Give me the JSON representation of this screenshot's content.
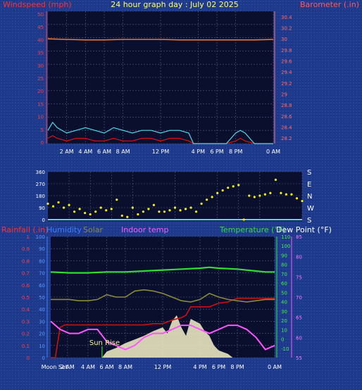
{
  "title": "24 hour graph day : July 02 2025",
  "colors": {
    "plot_bg": "#0a0f2e",
    "grid": "#4d5b80",
    "wind_avg": "#e01010",
    "wind_gust": "#4fd8e8",
    "barometer": "#e8783a",
    "direction": "#f4f414",
    "direction_base": "#56d6ff",
    "rainfall": "#cc1111",
    "humidity": "#1e90ff",
    "solar": "#8a8a3a",
    "indoor": "#ff55ff",
    "temperature": "#33dd33",
    "dewpoint": "#ffffff",
    "solar_fill": "#f6f2c8",
    "sunrise_label": "#f6f2a0"
  },
  "chart_data": [
    {
      "type": "line",
      "name": "wind-barometer",
      "left_axis": {
        "label": "Windspeed (mph)",
        "range": [
          0,
          50
        ],
        "ticks": [
          "0",
          "5",
          "10",
          "15",
          "20",
          "25",
          "30",
          "35",
          "40",
          "45",
          "50"
        ]
      },
      "right_axis": {
        "label": "Barometer (.in)",
        "range": [
          28.1,
          30.5
        ],
        "ticks": [
          "28.2",
          "28.4",
          "28.6",
          "28.8",
          "29",
          "29.2",
          "29.4",
          "29.6",
          "29.8",
          "30",
          "30.2",
          "30.4"
        ]
      },
      "x_ticks": [
        "2 AM",
        "4 AM",
        "6 AM",
        "8 AM",
        "12 PM",
        "4 PM",
        "6 PM",
        "8 PM",
        "0 AM"
      ],
      "x_tick_hours": [
        2,
        4,
        6,
        8,
        12,
        16,
        18,
        20,
        24
      ],
      "x_range": [
        0,
        24
      ],
      "barometer": {
        "x": [
          0,
          2,
          4,
          6,
          8,
          10,
          12,
          14,
          16,
          18,
          20,
          22,
          24
        ],
        "y": [
          30.0,
          29.99,
          29.98,
          29.98,
          29.99,
          29.99,
          29.99,
          29.98,
          29.98,
          29.98,
          29.98,
          29.98,
          29.99
        ]
      },
      "wind_gust": {
        "x": [
          0,
          0.5,
          1,
          2,
          3,
          4,
          5,
          6,
          7,
          8,
          9,
          10,
          11,
          12,
          13,
          14,
          15,
          15.5,
          16,
          17,
          18,
          19,
          20,
          20.5,
          21,
          22,
          24
        ],
        "y": [
          5,
          8,
          6,
          4,
          5,
          6,
          5,
          4,
          6,
          5,
          4,
          5,
          5,
          4,
          5,
          5,
          4,
          0,
          0,
          0,
          0,
          0,
          4,
          5,
          4,
          0,
          0
        ]
      },
      "wind_avg": {
        "x": [
          0,
          0.5,
          1,
          2,
          3,
          4,
          5,
          6,
          7,
          8,
          9,
          10,
          11,
          12,
          13,
          14,
          15,
          15.5,
          16,
          17,
          18,
          19,
          20,
          20.5,
          21,
          22,
          24
        ],
        "y": [
          2,
          3,
          2,
          1,
          2,
          2,
          1,
          1,
          2,
          1,
          1,
          2,
          2,
          1,
          2,
          2,
          1,
          0,
          0,
          0,
          0,
          0,
          1,
          2,
          1,
          0,
          0
        ]
      }
    },
    {
      "type": "scatter",
      "name": "wind-direction",
      "left_axis": {
        "range": [
          0,
          360
        ],
        "ticks": [
          "0",
          "90",
          "180",
          "270",
          "360"
        ]
      },
      "right_axis": {
        "ticks": [
          "S",
          "W",
          "N",
          "E",
          "S"
        ]
      },
      "x_range": [
        0,
        24
      ],
      "direction": {
        "x": [
          0,
          0.5,
          1,
          1.5,
          2,
          2.5,
          3,
          3.5,
          4,
          4.5,
          5,
          5.5,
          6,
          6.5,
          7,
          7.5,
          8,
          8.5,
          9,
          9.5,
          10,
          10.5,
          11,
          11.5,
          12,
          12.5,
          13,
          13.5,
          14,
          14.5,
          15,
          15.5,
          16,
          16.5,
          17,
          17.5,
          18,
          18.5,
          19,
          19.5,
          20,
          20.5,
          21,
          21.5,
          22,
          22.5,
          23,
          23.5,
          24
        ],
        "y": [
          120,
          100,
          130,
          90,
          110,
          60,
          80,
          50,
          40,
          60,
          90,
          70,
          80,
          150,
          30,
          20,
          90,
          40,
          60,
          80,
          110,
          60,
          60,
          70,
          90,
          70,
          80,
          90,
          60,
          120,
          150,
          170,
          200,
          220,
          240,
          250,
          260,
          0,
          180,
          170,
          180,
          190,
          200,
          300,
          200,
          190,
          190,
          160,
          140
        ]
      }
    },
    {
      "type": "line",
      "name": "temperature-humidity",
      "legend": [
        "Rainfall (.in)",
        "Humidity",
        "Solar",
        "Indoor temp",
        "Temperature (°F)",
        "Dew Point (°F)"
      ],
      "rain_axis": {
        "range": [
          0,
          1
        ],
        "ticks": [
          "0",
          "0.1",
          "0.2",
          "0.3",
          "0.4",
          "0.5",
          "0.6",
          "0.7",
          "0.8",
          "0.9",
          "1"
        ]
      },
      "humidity_axis": {
        "range": [
          0,
          100
        ],
        "ticks": [
          "0",
          "10",
          "20",
          "30",
          "40",
          "50",
          "60",
          "70",
          "80",
          "90",
          "100"
        ]
      },
      "temp_axis": {
        "range": [
          -20,
          110
        ],
        "ticks": [
          "-10",
          "0",
          "10",
          "20",
          "30",
          "40",
          "50",
          "60",
          "70",
          "80",
          "90",
          "100",
          "110"
        ]
      },
      "indoor_axis": {
        "range": [
          55,
          85
        ],
        "ticks": [
          "55",
          "60",
          "65",
          "70",
          "75",
          "80",
          "85"
        ]
      },
      "x_ticks": [
        "Moon Set",
        "2 AM",
        "4 AM",
        "6 AM",
        "8 AM",
        "12 PM",
        "4 PM",
        "6 PM",
        "8 PM",
        "0 AM"
      ],
      "x_tick_hours": [
        0.4,
        1.8,
        4,
        6,
        8,
        12,
        16,
        18,
        20,
        24
      ],
      "x_range": [
        0,
        24
      ],
      "annotation": "Sun Rise",
      "annotation_hour": 5.5,
      "temperature": {
        "x": [
          0,
          2,
          4,
          6,
          8,
          10,
          12,
          14,
          16,
          17,
          18,
          20,
          22,
          23,
          24
        ],
        "y": [
          72,
          71,
          71,
          72,
          72,
          73,
          74,
          75,
          76,
          77,
          76,
          75,
          73,
          72,
          72
        ]
      },
      "dewpoint": {
        "x": [
          0,
          2,
          4,
          6,
          8,
          10,
          12,
          14,
          16,
          18,
          20,
          22,
          24
        ],
        "y": [
          62,
          62,
          62,
          62,
          62,
          62,
          63,
          63,
          63,
          63,
          63,
          62,
          62
        ]
      },
      "humidity": {
        "x": [
          0,
          1,
          2,
          3,
          4,
          5,
          6,
          7,
          8,
          9,
          10,
          11,
          12,
          13,
          14,
          15,
          16,
          17,
          18,
          19,
          20,
          21,
          22,
          23,
          24
        ],
        "y": [
          48,
          48,
          48,
          47,
          47,
          48,
          52,
          50,
          50,
          55,
          56,
          55,
          53,
          50,
          47,
          46,
          48,
          53,
          50,
          48,
          47,
          46,
          47,
          48,
          48
        ]
      },
      "indoor": {
        "x": [
          0,
          1,
          2,
          3,
          4,
          5,
          6,
          7,
          8,
          9,
          10,
          11,
          12,
          13,
          14,
          15,
          16,
          17,
          18,
          19,
          20,
          21,
          22,
          23,
          24
        ],
        "y": [
          64,
          62,
          61,
          61,
          62,
          62,
          59,
          58,
          57,
          58,
          60,
          61,
          61,
          62,
          63,
          63,
          62,
          61,
          62,
          63,
          63,
          62,
          60,
          57,
          58
        ]
      },
      "rainfall": {
        "x": [
          0,
          0.5,
          0.8,
          1,
          1.5,
          3,
          5,
          7,
          9,
          10,
          11,
          12,
          13,
          14,
          14.5,
          15,
          17,
          18,
          19,
          20,
          20.5,
          21,
          23,
          24
        ],
        "y": [
          0,
          0,
          0.15,
          0.25,
          0.27,
          0.27,
          0.27,
          0.27,
          0.27,
          0.27,
          0.28,
          0.28,
          0.31,
          0.33,
          0.35,
          0.42,
          0.42,
          0.45,
          0.46,
          0.49,
          0.49,
          0.49,
          0.49,
          0.49
        ]
      },
      "solar": {
        "x": [
          5.5,
          6,
          7,
          8,
          9,
          10,
          11,
          12,
          12.5,
          13,
          13.5,
          14,
          14.5,
          15,
          15.5,
          16,
          16.5,
          17,
          17.5,
          18,
          19,
          19.5
        ],
        "y": [
          0,
          5,
          8,
          12,
          15,
          18,
          22,
          25,
          20,
          30,
          35,
          25,
          18,
          32,
          30,
          28,
          22,
          18,
          10,
          6,
          3,
          0
        ]
      }
    }
  ]
}
